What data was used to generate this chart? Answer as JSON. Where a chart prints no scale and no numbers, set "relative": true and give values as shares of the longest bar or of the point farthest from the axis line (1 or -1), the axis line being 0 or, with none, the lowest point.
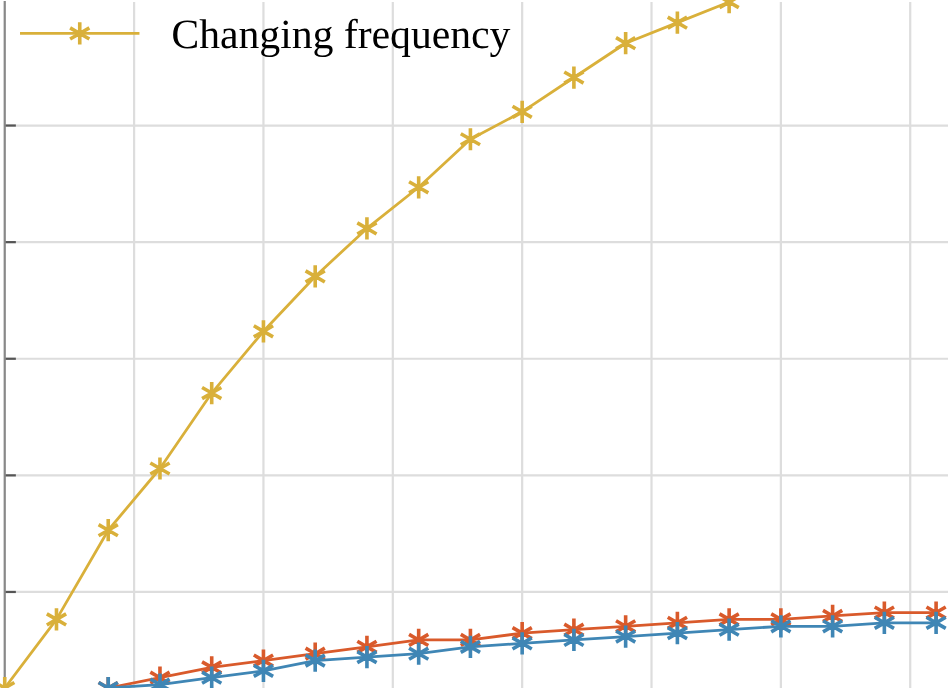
{
  "chart_data": {
    "type": "line",
    "relative": true,
    "categories": [
      null,
      null,
      null,
      null,
      null,
      null,
      null,
      null,
      null,
      null,
      null,
      null,
      null,
      null,
      null,
      null,
      null,
      null,
      null
    ],
    "series": [
      {
        "name": "Changing frequency",
        "color": "#d9b03a",
        "values": [
          0,
          0.1,
          0.23,
          0.32,
          0.43,
          0.52,
          0.6,
          0.67,
          0.73,
          0.8,
          0.84,
          0.89,
          0.94,
          0.97,
          1.0,
          null,
          null,
          null,
          null
        ]
      },
      {
        "color": "#d95a2b",
        "values": [
          null,
          null,
          0.0,
          0.015,
          0.03,
          0.04,
          0.05,
          0.06,
          0.07,
          0.07,
          0.08,
          0.085,
          0.09,
          0.095,
          0.1,
          0.1,
          0.105,
          0.11,
          0.11
        ]
      },
      {
        "color": "#3f86b5",
        "values": [
          null,
          null,
          0.0,
          0.005,
          0.015,
          0.025,
          0.04,
          0.045,
          0.05,
          0.06,
          0.065,
          0.07,
          0.075,
          0.08,
          0.085,
          0.09,
          0.09,
          0.095,
          0.095
        ]
      }
    ],
    "grid": true,
    "legend": "top left",
    "marker": "cross",
    "line_style": "solid"
  }
}
